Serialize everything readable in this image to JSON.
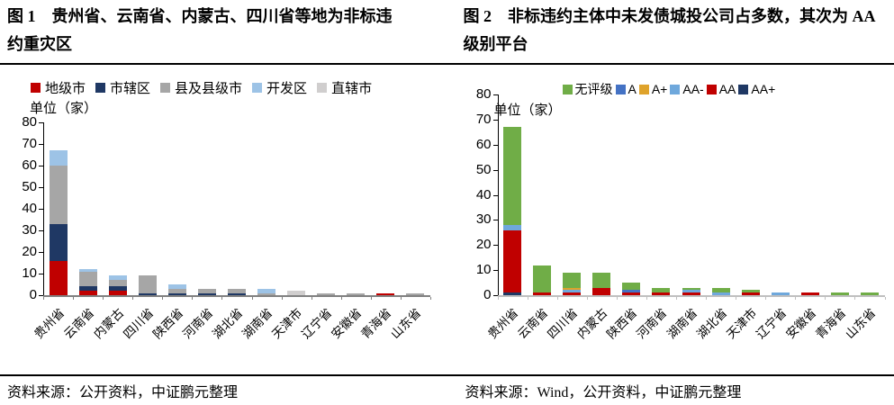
{
  "chart_data": [
    {
      "type": "bar",
      "stacked": true,
      "stack_order": "normal",
      "title": "图 1　贵州省、云南省、内蒙古、四川省等地为非标违约重灾区",
      "unit_label": "单位（家）",
      "source": "资料来源：公开资料，中证鹏元整理",
      "ylim": [
        0,
        80
      ],
      "yticks": [
        0,
        10,
        20,
        30,
        40,
        50,
        60,
        70,
        80
      ],
      "grid": false,
      "legend_position": "top-left",
      "categories": [
        "贵州省",
        "云南省",
        "内蒙古",
        "四川省",
        "陕西省",
        "河南省",
        "湖北省",
        "湖南省",
        "天津市",
        "辽宁省",
        "安徽省",
        "青海省",
        "山东省"
      ],
      "series": [
        {
          "name": "地级市",
          "color": "#C00000",
          "values": [
            16,
            2,
            2,
            0,
            0,
            0,
            0,
            0,
            0,
            0,
            0,
            1,
            0
          ]
        },
        {
          "name": "市辖区",
          "color": "#1F3864",
          "values": [
            17,
            2,
            2,
            1,
            1,
            1,
            1,
            0,
            0,
            0,
            0,
            0,
            0
          ]
        },
        {
          "name": "县及县级市",
          "color": "#A6A6A6",
          "values": [
            27,
            7,
            3,
            8,
            2,
            2,
            2,
            1,
            0,
            1,
            1,
            0,
            1
          ]
        },
        {
          "name": "开发区",
          "color": "#9DC3E6",
          "values": [
            7,
            1,
            2,
            0,
            2,
            0,
            0,
            2,
            0,
            0,
            0,
            0,
            0
          ]
        },
        {
          "name": "直辖市",
          "color": "#D0CECE",
          "values": [
            0,
            0,
            0,
            0,
            0,
            0,
            0,
            0,
            2,
            0,
            0,
            0,
            0
          ]
        }
      ]
    },
    {
      "type": "bar",
      "stacked": true,
      "stack_order": "reverse",
      "title": "图 2　非标违约主体中未发债城投公司占多数，其次为 AA 级别平台",
      "unit_label": "单位（家）",
      "source": "资料来源：Wind，公开资料，中证鹏元整理",
      "ylim": [
        0,
        80
      ],
      "yticks": [
        0,
        10,
        20,
        30,
        40,
        50,
        60,
        70,
        80
      ],
      "grid": false,
      "legend_position": "top-right",
      "categories": [
        "贵州省",
        "云南省",
        "四川省",
        "内蒙古",
        "陕西省",
        "河南省",
        "湖南省",
        "湖北省",
        "天津市",
        "辽宁省",
        "安徽省",
        "青海省",
        "山东省"
      ],
      "series": [
        {
          "name": "无评级",
          "color": "#70AD47",
          "values": [
            39,
            11,
            6,
            6,
            3,
            2,
            1,
            2,
            1,
            0,
            0,
            1,
            1
          ]
        },
        {
          "name": "A",
          "color": "#4472C4",
          "values": [
            0,
            0,
            0,
            0,
            1,
            0,
            0,
            0,
            0,
            0,
            0,
            0,
            0
          ]
        },
        {
          "name": "A+",
          "color": "#DFA32B",
          "values": [
            0,
            0,
            1,
            0,
            0,
            0,
            0,
            0,
            0,
            0,
            0,
            0,
            0
          ]
        },
        {
          "name": "AA-",
          "color": "#6FA8DC",
          "values": [
            2,
            0,
            1,
            0,
            0,
            0,
            1,
            1,
            0,
            1,
            0,
            0,
            0
          ]
        },
        {
          "name": "AA",
          "color": "#C00000",
          "values": [
            25,
            1,
            1,
            3,
            1,
            1,
            1,
            0,
            1,
            0,
            1,
            0,
            0
          ]
        },
        {
          "name": "AA+",
          "color": "#1F3864",
          "values": [
            1,
            0,
            0,
            0,
            0,
            0,
            0,
            0,
            0,
            0,
            0,
            0,
            0
          ]
        }
      ]
    }
  ]
}
